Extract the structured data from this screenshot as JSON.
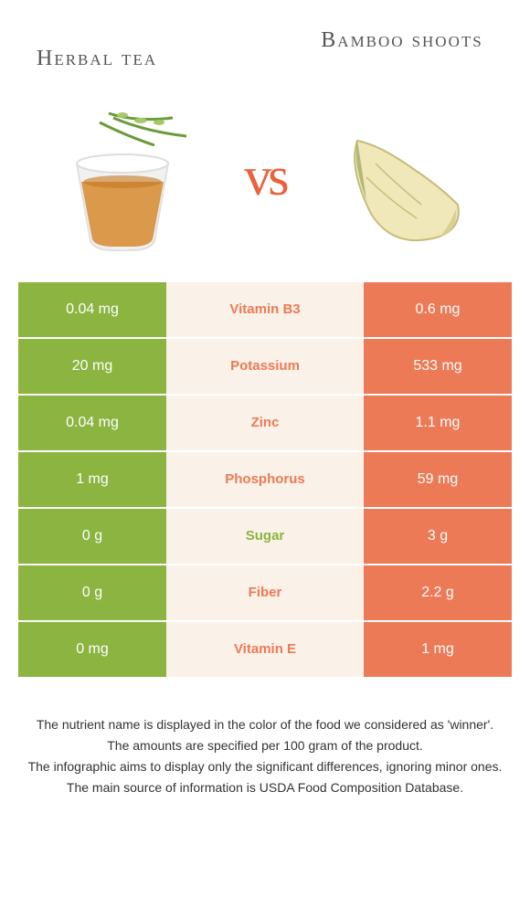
{
  "colors": {
    "left": "#8bb440",
    "right": "#ed7a56",
    "mid_bg": "#faf2e8",
    "text_white": "#ffffff"
  },
  "titles": {
    "left": "Herbal tea",
    "right": "Bamboo shoots",
    "vs": "vs"
  },
  "rows": [
    {
      "left": "0.04 mg",
      "label": "Vitamin B3",
      "right": "0.6 mg",
      "winner": "right"
    },
    {
      "left": "20 mg",
      "label": "Potassium",
      "right": "533 mg",
      "winner": "right"
    },
    {
      "left": "0.04 mg",
      "label": "Zinc",
      "right": "1.1 mg",
      "winner": "right"
    },
    {
      "left": "1 mg",
      "label": "Phosphorus",
      "right": "59 mg",
      "winner": "right"
    },
    {
      "left": "0 g",
      "label": "Sugar",
      "right": "3 g",
      "winner": "left"
    },
    {
      "left": "0 g",
      "label": "Fiber",
      "right": "2.2 g",
      "winner": "right"
    },
    {
      "left": "0 mg",
      "label": "Vitamin E",
      "right": "1 mg",
      "winner": "right"
    }
  ],
  "footer": [
    "The nutrient name is displayed in the color of the food we considered as 'winner'.",
    "The amounts are specified per 100 gram of the product.",
    "The infographic aims to display only the significant differences, ignoring minor ones.",
    "The main source of information is USDA Food Composition Database."
  ]
}
